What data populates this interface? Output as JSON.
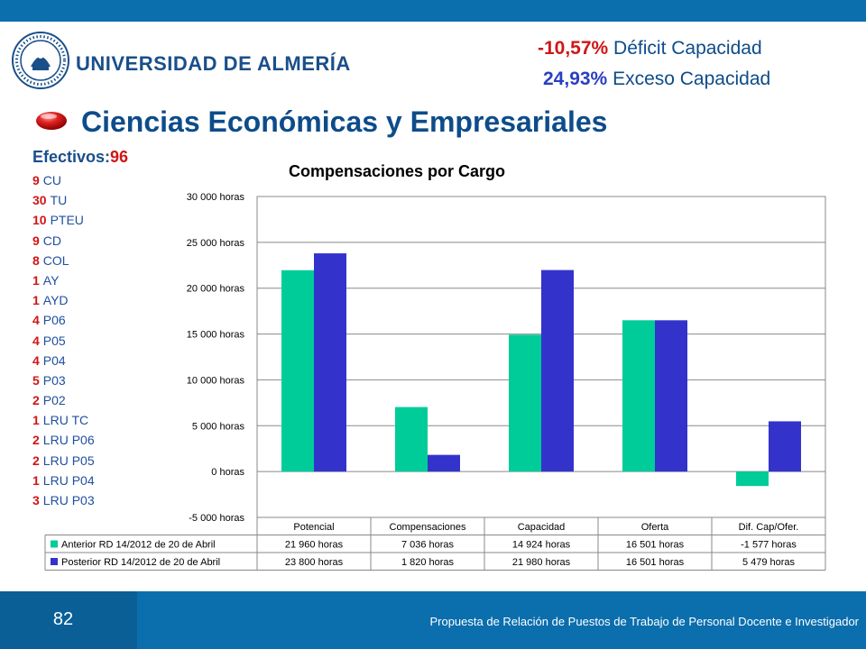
{
  "header": {
    "university": "UNIVERSIDAD DE ALMERÍA",
    "deficit_value": "-10,57%",
    "deficit_label": " Déficit Capacidad",
    "excess_value": "24,93%",
    "excess_label": " Exceso Capacidad",
    "title": "Ciencias Económicas y Empresariales"
  },
  "staff": {
    "label": "Efectivos:",
    "total": "96",
    "items": [
      {
        "count": "9",
        "label": "CU"
      },
      {
        "count": "30",
        "label": "TU"
      },
      {
        "count": "10",
        "label": "PTEU"
      },
      {
        "count": "9",
        "label": "CD"
      },
      {
        "count": "8",
        "label": "COL"
      },
      {
        "count": "1",
        "label": "AY"
      },
      {
        "count": "1",
        "label": "AYD"
      },
      {
        "count": "4",
        "label": "P06"
      },
      {
        "count": "4",
        "label": "P05"
      },
      {
        "count": "4",
        "label": "P04"
      },
      {
        "count": "5",
        "label": "P03"
      },
      {
        "count": "2",
        "label": "P02"
      },
      {
        "count": "1",
        "label": "LRU TC"
      },
      {
        "count": "2",
        "label": "LRU P06"
      },
      {
        "count": "2",
        "label": "LRU P05"
      },
      {
        "count": "1",
        "label": "LRU P04"
      },
      {
        "count": "3",
        "label": "LRU P03"
      }
    ]
  },
  "chart_data": {
    "type": "bar",
    "title": "Compensaciones por Cargo",
    "categories": [
      "Potencial",
      "Compensaciones",
      "Capacidad",
      "Oferta",
      "Dif. Cap/Ofer."
    ],
    "ylim": [
      -5000,
      30000
    ],
    "yticks": [
      -5000,
      0,
      5000,
      10000,
      15000,
      20000,
      25000,
      30000
    ],
    "ytick_labels": [
      "-5 000 horas",
      "0 horas",
      "5 000 horas",
      "10 000 horas",
      "15 000 horas",
      "20 000 horas",
      "25 000 horas",
      "30 000 horas"
    ],
    "grid": true,
    "legend": "data table below chart",
    "series": [
      {
        "name": "Anterior RD 14/2012 de 20 de Abril",
        "color": "#00cc99",
        "values": [
          21960,
          7036,
          14924,
          16501,
          -1577
        ],
        "labels": [
          "21 960 horas",
          "7 036 horas",
          "14 924 horas",
          "16 501 horas",
          "-1 577 horas"
        ]
      },
      {
        "name": "Posterior RD 14/2012 de 20 de Abril",
        "color": "#3333cc",
        "values": [
          23800,
          1820,
          21980,
          16501,
          5479
        ],
        "labels": [
          "23 800 horas",
          "1 820 horas",
          "21 980 horas",
          "16 501 horas",
          "5 479 horas"
        ]
      }
    ]
  },
  "footer": {
    "page_number": "82",
    "text": "Propuesta de Relación de Puestos de Trabajo de Personal Docente e Investigador"
  }
}
